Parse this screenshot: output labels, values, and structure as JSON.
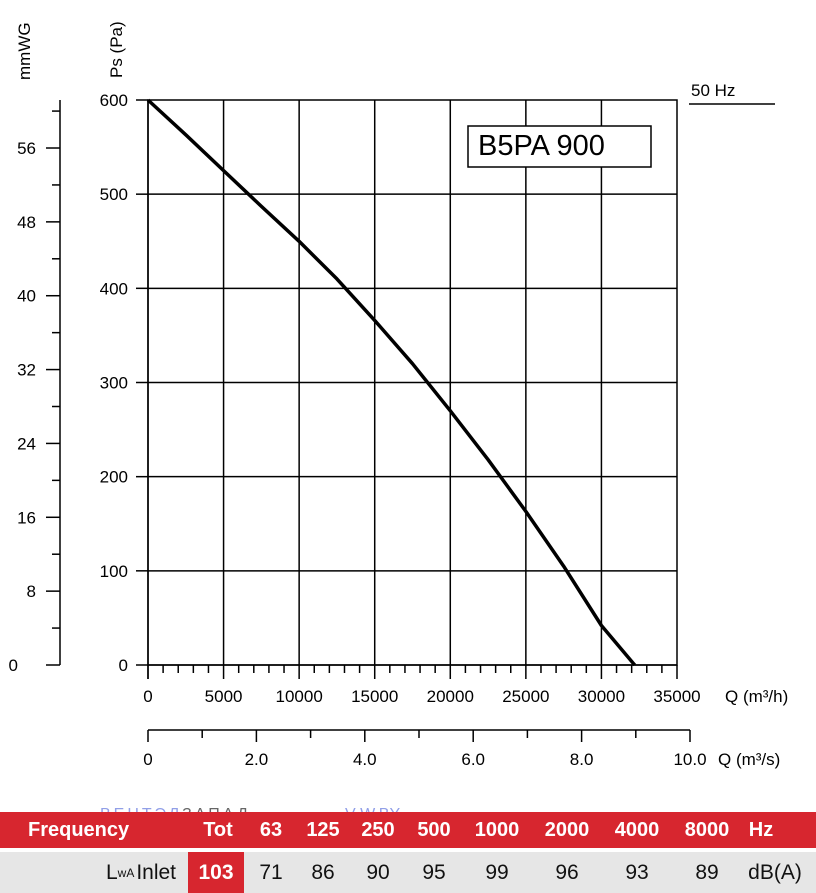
{
  "chart_data": {
    "type": "line",
    "title": "B5PA 900",
    "frequency_label": "50 Hz",
    "xlabel": "Q (m³/h)",
    "xlabel2": "Q (m³/s)",
    "ylabel": "Ps (Pa)",
    "ylabel2": "mmWG",
    "xlim": [
      0,
      35000
    ],
    "ylim": [
      0,
      600
    ],
    "xlim2": [
      0,
      10.0
    ],
    "ylim2": [
      0,
      61.2
    ],
    "x_ticks": [
      "0",
      "5000",
      "10000",
      "15000",
      "20000",
      "25000",
      "30000",
      "35000"
    ],
    "x_tick_values": [
      0,
      5000,
      10000,
      15000,
      20000,
      25000,
      30000,
      35000
    ],
    "y_ticks": [
      "0",
      "100",
      "200",
      "300",
      "400",
      "500",
      "600"
    ],
    "y_tick_values": [
      0,
      100,
      200,
      300,
      400,
      500,
      600
    ],
    "x2_ticks": [
      "0",
      "2.0",
      "4.0",
      "6.0",
      "8.0",
      "10.0"
    ],
    "x2_tick_values": [
      0,
      2,
      4,
      6,
      8,
      10
    ],
    "y2_ticks": [
      "0",
      "8",
      "16",
      "24",
      "32",
      "40",
      "48",
      "56"
    ],
    "y2_tick_values": [
      0,
      8,
      16,
      24,
      32,
      40,
      48,
      56
    ],
    "series": [
      {
        "name": "B5PA 900",
        "x": [
          0,
          2500,
          5000,
          7500,
          10000,
          12500,
          15000,
          17500,
          20000,
          22500,
          25000,
          27500,
          30000,
          32200
        ],
        "y": [
          600,
          563,
          525,
          487,
          450,
          410,
          366,
          320,
          270,
          218,
          163,
          105,
          42,
          0
        ]
      }
    ]
  },
  "watermark": {
    "brand1": "ВЕНТЭЛ",
    "brand2": "ЗАПАД",
    "site": "V-W.BY"
  },
  "sound_table": {
    "header": {
      "label": "Frequency",
      "tot": "Tot",
      "bands": [
        "63",
        "125",
        "250",
        "500",
        "1000",
        "2000",
        "4000",
        "8000"
      ],
      "unit": "Hz"
    },
    "row": {
      "label_main": "L",
      "label_sub": "wA",
      "label_tail": "Inlet",
      "tot": "103",
      "values": [
        "71",
        "86",
        "90",
        "95",
        "99",
        "96",
        "93",
        "89"
      ],
      "unit": "dB(A)"
    },
    "colors": {
      "header_bg": "#d7262f",
      "row_bg": "#e6e6e6"
    }
  }
}
